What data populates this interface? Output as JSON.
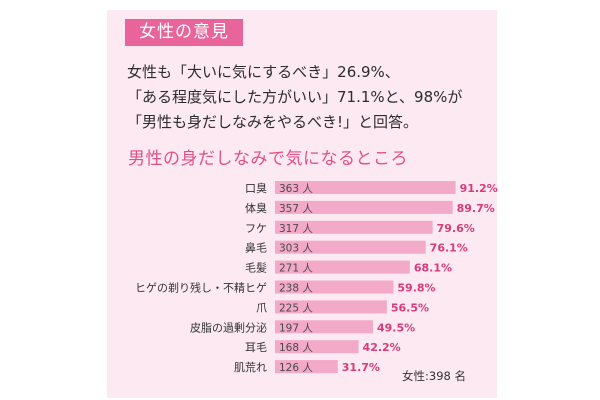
{
  "header": {
    "tag": "女性の意見"
  },
  "summary": {
    "line1": "女性も「大いに気にするべき」26.9%、",
    "line2": "「ある程度気にした方がいい」71.1%と、98%が",
    "line3": "「男性も身だしなみをやるべき!」と回答。"
  },
  "chart_title": "男性の身だしなみで気になるところ",
  "note": "女性:398 名",
  "colors": {
    "panel": "#fde9f1",
    "bar": "#f3a9c8",
    "accent": "#e8649a",
    "percent": "#d63c7c"
  },
  "chart_data": {
    "type": "bar",
    "orientation": "horizontal",
    "categories": [
      "口臭",
      "体臭",
      "フケ",
      "鼻毛",
      "毛髪",
      "ヒゲの剃り残し・不精ヒゲ",
      "爪",
      "皮脂の過剰分泌",
      "耳毛",
      "肌荒れ"
    ],
    "counts": [
      363,
      357,
      317,
      303,
      271,
      238,
      225,
      197,
      168,
      126
    ],
    "count_labels": [
      "363 人",
      "357 人",
      "317 人",
      "303 人",
      "271 人",
      "238 人",
      "225 人",
      "197 人",
      "168 人",
      "126 人"
    ],
    "values": [
      91.2,
      89.7,
      79.6,
      76.1,
      68.1,
      59.8,
      56.5,
      49.5,
      42.2,
      31.7
    ],
    "value_labels": [
      "91.2%",
      "89.7%",
      "79.6%",
      "76.1%",
      "68.1%",
      "59.8%",
      "56.5%",
      "49.5%",
      "42.2%",
      "31.7%"
    ],
    "xlim": [
      0,
      100
    ],
    "grid": false
  }
}
